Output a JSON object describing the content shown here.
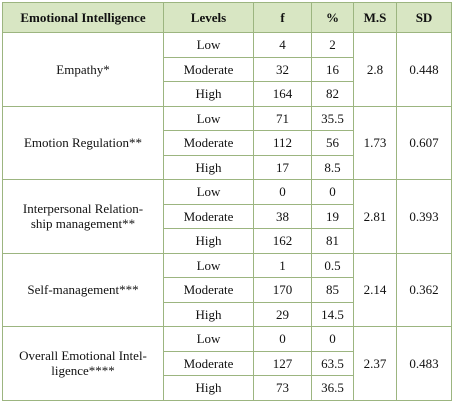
{
  "table": {
    "header": [
      "Emotional Intelligence",
      "Levels",
      "f",
      "%",
      "M.S",
      "SD"
    ],
    "groups": [
      {
        "label": [
          "Empathy*"
        ],
        "rows": [
          [
            "Low",
            4,
            2
          ],
          [
            "Moderate",
            32,
            16
          ],
          [
            "High",
            164,
            82
          ]
        ],
        "ms": 2.8,
        "sd": 0.448
      },
      {
        "label": [
          "Emotion Regulation**"
        ],
        "rows": [
          [
            "Low",
            71,
            35.5
          ],
          [
            "Moderate",
            112,
            56
          ],
          [
            "High",
            17,
            8.5
          ]
        ],
        "ms": 1.73,
        "sd": 0.607
      },
      {
        "label": [
          "Interpersonal Relation-",
          "ship management**"
        ],
        "rows": [
          [
            "Low",
            0,
            0
          ],
          [
            "Moderate",
            38,
            19
          ],
          [
            "High",
            162,
            81
          ]
        ],
        "ms": 2.81,
        "sd": 0.393
      },
      {
        "label": [
          "Self-management***"
        ],
        "rows": [
          [
            "Low",
            1,
            0.5
          ],
          [
            "Moderate",
            170,
            85
          ],
          [
            "High",
            29,
            14.5
          ]
        ],
        "ms": 2.14,
        "sd": 0.362
      },
      {
        "label": [
          "Overall Emotional Intel-",
          "ligence****"
        ],
        "rows": [
          [
            "Low",
            0,
            0
          ],
          [
            "Moderate",
            127,
            63.5
          ],
          [
            "High",
            73,
            36.5
          ]
        ],
        "ms": 2.37,
        "sd": 0.483
      }
    ]
  }
}
